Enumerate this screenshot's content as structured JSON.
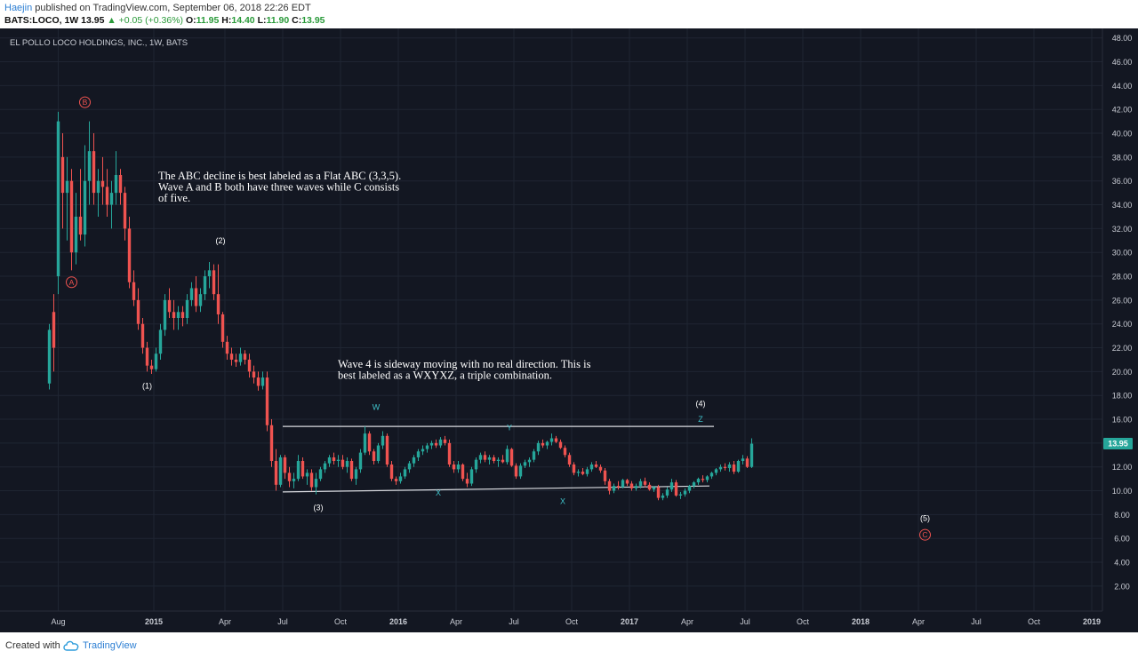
{
  "header": {
    "author": "Haejin",
    "published_text": "published on TradingView.com, September 06, 2018 22:26 EDT",
    "symbol_line": "BATS:LOCO, 1W",
    "last": "13.95",
    "change": "+0.05 (+0.36%)",
    "o_label": "O:",
    "o_val": "11.95",
    "h_label": "H:",
    "h_val": "14.40",
    "l_label": "L:",
    "l_val": "11.90",
    "c_label": "C:",
    "c_val": "13.95"
  },
  "footer": {
    "created_with": "Created with",
    "brand": "TradingView"
  },
  "colors": {
    "background": "#131722",
    "grid": "#1f2532",
    "axis_text": "#c9ccd4",
    "up_candle": "#26a69a",
    "down_candle": "#ef5350",
    "annotation_text": "#ffffff",
    "abc_label": "#ef5350",
    "wxyxz_label": "#3fc1c9",
    "price_badge": "#26a69a"
  },
  "chart_data": {
    "type": "candlestick",
    "title": "EL POLLO LOCO HOLDINGS, INC., 1W, BATS",
    "ylim": [
      0.5,
      48.5
    ],
    "y_ticks": [
      "2.00",
      "4.00",
      "6.00",
      "8.00",
      "10.00",
      "12.00",
      "14.00",
      "16.00",
      "18.00",
      "20.00",
      "22.00",
      "24.00",
      "26.00",
      "28.00",
      "30.00",
      "32.00",
      "34.00",
      "36.00",
      "38.00",
      "40.00",
      "42.00",
      "44.00",
      "46.00",
      "48.00"
    ],
    "x_ticks": [
      "Aug",
      "2015",
      "Apr",
      "Jul",
      "Oct",
      "2016",
      "Apr",
      "Jul",
      "Oct",
      "2017",
      "Apr",
      "Jul",
      "Oct",
      "2018",
      "Apr",
      "Jul",
      "Oct",
      "2019"
    ],
    "x_tick_weeks": [
      0.5,
      22,
      38,
      51,
      64,
      77,
      90,
      103,
      116,
      129,
      142,
      155,
      168,
      181,
      194,
      207,
      220,
      233
    ],
    "last_price": "13.95",
    "series": [
      {
        "kind": "ohlc_weekly",
        "first_week": -1.5,
        "ohlc": [
          [
            19.0,
            24.0,
            18.5,
            23.5
          ],
          [
            25.0,
            26.5,
            20.0,
            22.0
          ],
          [
            28.0,
            41.8,
            26.5,
            41.0
          ],
          [
            38.0,
            40.0,
            32.0,
            35.0
          ],
          [
            35.0,
            38.0,
            31.0,
            36.0
          ],
          [
            36.0,
            37.0,
            28.5,
            30.0
          ],
          [
            30.0,
            35.0,
            29.0,
            33.0
          ],
          [
            33.0,
            37.0,
            31.0,
            31.5
          ],
          [
            31.5,
            39.0,
            30.5,
            36.0
          ],
          [
            36.0,
            41.0,
            34.0,
            38.5
          ],
          [
            38.5,
            40.0,
            34.0,
            35.0
          ],
          [
            35.0,
            37.0,
            33.0,
            36.0
          ],
          [
            36.0,
            38.0,
            34.0,
            35.5
          ],
          [
            35.5,
            37.0,
            33.0,
            34.0
          ],
          [
            34.0,
            36.0,
            32.0,
            35.0
          ],
          [
            35.0,
            38.5,
            34.0,
            36.5
          ],
          [
            36.5,
            37.0,
            34.0,
            35.0
          ],
          [
            35.0,
            35.5,
            31.0,
            32.0
          ],
          [
            32.0,
            33.0,
            27.0,
            27.5
          ],
          [
            27.5,
            28.5,
            25.5,
            26.0
          ],
          [
            26.0,
            27.0,
            23.5,
            24.0
          ],
          [
            24.0,
            24.5,
            21.5,
            22.0
          ],
          [
            22.0,
            22.5,
            20.0,
            20.5
          ],
          [
            20.5,
            21.0,
            19.8,
            20.2
          ],
          [
            20.2,
            22.0,
            20.0,
            21.5
          ],
          [
            21.5,
            24.0,
            21.0,
            23.5
          ],
          [
            23.5,
            26.5,
            23.0,
            26.0
          ],
          [
            26.0,
            27.0,
            24.5,
            25.0
          ],
          [
            25.0,
            26.0,
            23.5,
            24.5
          ],
          [
            24.5,
            25.5,
            23.5,
            25.0
          ],
          [
            25.0,
            25.5,
            23.8,
            24.5
          ],
          [
            24.5,
            26.5,
            24.0,
            26.0
          ],
          [
            26.0,
            27.5,
            25.5,
            27.0
          ],
          [
            27.0,
            28.0,
            25.0,
            25.5
          ],
          [
            25.5,
            27.0,
            25.0,
            26.5
          ],
          [
            26.5,
            28.5,
            26.0,
            28.0
          ],
          [
            28.0,
            29.2,
            27.0,
            28.5
          ],
          [
            28.5,
            29.0,
            26.0,
            26.5
          ],
          [
            26.5,
            29.0,
            24.0,
            24.8
          ],
          [
            24.8,
            25.0,
            22.0,
            22.5
          ],
          [
            22.5,
            23.0,
            21.0,
            21.5
          ],
          [
            21.5,
            22.0,
            20.5,
            21.0
          ],
          [
            21.0,
            21.5,
            20.4,
            20.8
          ],
          [
            20.8,
            22.0,
            20.5,
            21.5
          ],
          [
            21.5,
            21.8,
            20.6,
            21.0
          ],
          [
            21.0,
            21.5,
            19.5,
            20.0
          ],
          [
            20.0,
            20.5,
            19.0,
            19.5
          ],
          [
            19.5,
            20.0,
            18.4,
            18.8
          ],
          [
            18.8,
            20.0,
            18.5,
            19.5
          ],
          [
            19.5,
            20.0,
            15.0,
            15.5
          ],
          [
            15.5,
            16.0,
            12.0,
            12.5
          ],
          [
            12.5,
            13.5,
            10.0,
            10.5
          ],
          [
            10.5,
            13.0,
            10.3,
            12.8
          ],
          [
            12.8,
            13.0,
            11.0,
            11.5
          ],
          [
            11.5,
            12.0,
            10.3,
            10.8
          ],
          [
            10.8,
            11.5,
            10.2,
            11.0
          ],
          [
            11.0,
            13.0,
            10.8,
            12.5
          ],
          [
            12.5,
            12.8,
            11.0,
            11.2
          ],
          [
            11.2,
            11.8,
            10.5,
            11.5
          ],
          [
            11.5,
            11.8,
            10.0,
            10.3
          ],
          [
            10.3,
            11.5,
            9.7,
            11.0
          ],
          [
            11.0,
            12.0,
            10.8,
            11.8
          ],
          [
            11.8,
            12.5,
            11.5,
            12.3
          ],
          [
            12.3,
            13.0,
            12.0,
            12.8
          ],
          [
            12.8,
            13.2,
            12.2,
            12.5
          ],
          [
            12.5,
            13.0,
            12.0,
            12.6
          ],
          [
            12.6,
            13.0,
            11.8,
            12.0
          ],
          [
            12.0,
            12.8,
            11.5,
            12.5
          ],
          [
            12.5,
            12.7,
            10.8,
            11.0
          ],
          [
            11.0,
            12.0,
            10.5,
            11.8
          ],
          [
            11.8,
            13.5,
            11.5,
            13.2
          ],
          [
            13.2,
            15.4,
            13.0,
            14.8
          ],
          [
            14.8,
            15.0,
            13.0,
            13.3
          ],
          [
            13.3,
            13.5,
            12.2,
            12.5
          ],
          [
            12.5,
            14.0,
            12.3,
            13.8
          ],
          [
            13.8,
            15.0,
            13.5,
            14.6
          ],
          [
            14.6,
            14.8,
            12.0,
            12.2
          ],
          [
            12.2,
            12.5,
            10.8,
            11.0
          ],
          [
            11.0,
            11.2,
            10.5,
            10.8
          ],
          [
            10.8,
            11.5,
            10.6,
            11.2
          ],
          [
            11.2,
            12.0,
            11.0,
            11.8
          ],
          [
            11.8,
            12.5,
            11.5,
            12.3
          ],
          [
            12.3,
            13.0,
            12.0,
            12.8
          ],
          [
            12.8,
            13.5,
            12.5,
            13.3
          ],
          [
            13.3,
            13.8,
            13.0,
            13.5
          ],
          [
            13.5,
            14.0,
            13.2,
            13.8
          ],
          [
            13.8,
            14.2,
            13.5,
            14.0
          ],
          [
            14.0,
            14.3,
            13.6,
            13.8
          ],
          [
            13.8,
            14.5,
            13.6,
            14.3
          ],
          [
            14.3,
            14.6,
            13.8,
            14.0
          ],
          [
            14.0,
            14.3,
            12.0,
            12.2
          ],
          [
            12.2,
            12.5,
            11.5,
            11.8
          ],
          [
            11.8,
            12.5,
            11.5,
            12.2
          ],
          [
            12.2,
            12.3,
            10.8,
            11.0
          ],
          [
            11.0,
            11.5,
            10.3,
            10.6
          ],
          [
            10.6,
            12.0,
            10.4,
            11.8
          ],
          [
            11.8,
            12.8,
            11.5,
            12.6
          ],
          [
            12.6,
            13.2,
            12.3,
            13.0
          ],
          [
            13.0,
            13.3,
            12.4,
            12.6
          ],
          [
            12.6,
            13.0,
            12.2,
            12.8
          ],
          [
            12.8,
            13.0,
            12.3,
            12.5
          ],
          [
            12.5,
            12.8,
            12.0,
            12.6
          ],
          [
            12.6,
            13.0,
            12.3,
            12.4
          ],
          [
            12.4,
            13.8,
            12.2,
            13.5
          ],
          [
            13.5,
            13.6,
            12.0,
            12.1
          ],
          [
            12.1,
            12.3,
            11.0,
            11.2
          ],
          [
            11.2,
            12.3,
            11.0,
            12.1
          ],
          [
            12.1,
            12.6,
            11.9,
            12.4
          ],
          [
            12.4,
            12.8,
            12.0,
            12.6
          ],
          [
            12.6,
            13.5,
            12.4,
            13.3
          ],
          [
            13.3,
            14.2,
            13.0,
            14.0
          ],
          [
            14.0,
            14.3,
            13.6,
            13.8
          ],
          [
            13.8,
            14.2,
            13.5,
            14.1
          ],
          [
            14.1,
            14.8,
            13.8,
            14.4
          ],
          [
            14.4,
            14.6,
            14.0,
            14.1
          ],
          [
            14.1,
            14.3,
            13.5,
            13.6
          ],
          [
            13.6,
            13.8,
            12.8,
            13.0
          ],
          [
            13.0,
            13.2,
            12.0,
            12.2
          ],
          [
            12.2,
            12.4,
            11.3,
            11.5
          ],
          [
            11.5,
            11.8,
            11.2,
            11.6
          ],
          [
            11.6,
            11.9,
            11.3,
            11.4
          ],
          [
            11.4,
            12.0,
            11.2,
            11.8
          ],
          [
            11.8,
            12.4,
            11.6,
            12.2
          ],
          [
            12.2,
            12.5,
            11.9,
            12.0
          ],
          [
            12.0,
            12.2,
            11.5,
            11.7
          ],
          [
            11.7,
            11.9,
            10.5,
            10.8
          ],
          [
            10.8,
            11.0,
            9.7,
            10.0
          ],
          [
            10.0,
            10.6,
            9.8,
            10.4
          ],
          [
            10.4,
            10.8,
            10.1,
            10.3
          ],
          [
            10.3,
            11.0,
            10.2,
            10.9
          ],
          [
            10.9,
            11.0,
            10.4,
            10.6
          ],
          [
            10.6,
            10.8,
            10.0,
            10.2
          ],
          [
            10.2,
            10.6,
            10.0,
            10.4
          ],
          [
            10.4,
            11.0,
            10.2,
            10.8
          ],
          [
            10.8,
            11.1,
            10.3,
            10.5
          ],
          [
            10.5,
            10.7,
            10.0,
            10.1
          ],
          [
            10.1,
            10.4,
            9.9,
            10.3
          ],
          [
            10.3,
            10.5,
            9.2,
            9.4
          ],
          [
            9.4,
            9.8,
            9.2,
            9.6
          ],
          [
            9.6,
            10.3,
            9.4,
            10.1
          ],
          [
            10.1,
            11.0,
            9.9,
            10.7
          ],
          [
            10.7,
            10.9,
            9.5,
            9.6
          ],
          [
            9.6,
            9.9,
            9.3,
            9.7
          ],
          [
            9.7,
            10.2,
            9.5,
            10.0
          ],
          [
            10.0,
            10.5,
            9.8,
            10.4
          ],
          [
            10.4,
            10.8,
            10.2,
            10.7
          ],
          [
            10.7,
            11.1,
            10.5,
            11.0
          ],
          [
            11.0,
            11.3,
            10.7,
            10.9
          ],
          [
            10.9,
            11.3,
            10.7,
            11.2
          ],
          [
            11.2,
            11.6,
            11.0,
            11.5
          ],
          [
            11.5,
            11.9,
            11.3,
            11.8
          ],
          [
            11.8,
            12.2,
            11.6,
            12.0
          ],
          [
            12.0,
            12.3,
            11.7,
            11.9
          ],
          [
            11.9,
            12.4,
            11.6,
            12.2
          ],
          [
            12.2,
            12.5,
            11.4,
            11.6
          ],
          [
            11.6,
            12.6,
            11.5,
            12.5
          ],
          [
            12.5,
            13.0,
            12.2,
            12.7
          ],
          [
            12.7,
            12.9,
            11.9,
            12.0
          ],
          [
            12.0,
            14.4,
            11.9,
            13.95
          ]
        ]
      }
    ],
    "trendlines": [
      {
        "name": "upper",
        "from": [
          51,
          15.4
        ],
        "to": [
          148,
          15.4
        ]
      },
      {
        "name": "lower",
        "from": [
          51,
          9.9
        ],
        "to": [
          147,
          10.4
        ]
      }
    ],
    "annotations": {
      "text1": [
        "The ABC decline is best labeled as a Flat ABC (3,3,5).",
        "Wave A and B both have three waves while C consists",
        " of five."
      ],
      "text2": [
        "Wave 4 is sideway moving with no real direction. This is",
        "best labeled as a WXYXZ, a triple combination."
      ],
      "labels": [
        {
          "text": "B",
          "style": "circle",
          "week": 6.5,
          "price": 42.6
        },
        {
          "text": "A",
          "style": "circle",
          "week": 3.5,
          "price": 27.5
        },
        {
          "text": "C",
          "style": "circle",
          "week": 195.5,
          "price": 6.3
        },
        {
          "text": "(1)",
          "style": "wave",
          "week": 20.5,
          "price": 18.8
        },
        {
          "text": "(2)",
          "style": "wave",
          "week": 37.0,
          "price": 31.0
        },
        {
          "text": "(3)",
          "style": "wave",
          "week": 59.0,
          "price": 8.6
        },
        {
          "text": "(4)",
          "style": "wave",
          "week": 145.0,
          "price": 17.3
        },
        {
          "text": "(5)",
          "style": "wave",
          "week": 195.5,
          "price": 7.7
        },
        {
          "text": "W",
          "style": "sub",
          "week": 72.0,
          "price": 17.0
        },
        {
          "text": "X",
          "style": "sub",
          "week": 86.0,
          "price": 9.8
        },
        {
          "text": "Y",
          "style": "sub",
          "week": 102.0,
          "price": 15.3
        },
        {
          "text": "X",
          "style": "sub",
          "week": 114.0,
          "price": 9.1
        },
        {
          "text": "Z",
          "style": "sub",
          "week": 145.0,
          "price": 16.0
        }
      ]
    }
  }
}
